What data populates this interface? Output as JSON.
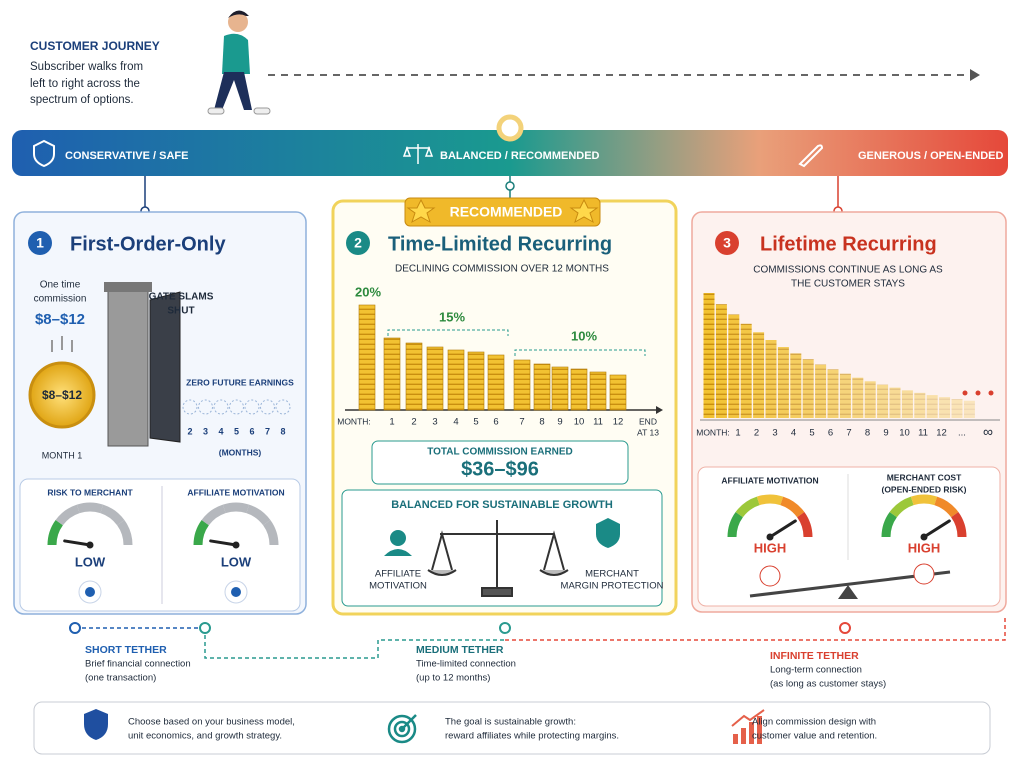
{
  "journey": {
    "title": "CUSTOMER JOURNEY",
    "lines": [
      "Subscriber walks from",
      "left to right across the",
      "spectrum of options."
    ]
  },
  "spectrum": [
    "CONSERVATIVE / SAFE",
    "BALANCED / RECOMMENDED",
    "GENEROUS / OPEN-ENDED"
  ],
  "badge": "RECOMMENDED",
  "panels": [
    {
      "number": "1",
      "title": "First-Order-Only",
      "commission_label": [
        "One time",
        "commission"
      ],
      "commission": "$8–$12",
      "coin": "$8–$12",
      "coin_caption": "MONTH 1",
      "gate": [
        "GATE SLAMS",
        "SHUT"
      ],
      "zero": "ZERO FUTURE EARNINGS",
      "months": [
        "2",
        "3",
        "4",
        "5",
        "6",
        "7",
        "8"
      ],
      "months_caption": "(MONTHS)",
      "gauges": [
        {
          "label": [
            "RISK TO MERCHANT"
          ],
          "level": "LOW"
        },
        {
          "label": [
            "AFFILIATE MOTIVATION"
          ],
          "level": "LOW"
        }
      ]
    },
    {
      "number": "2",
      "title": "Time-Limited Recurring",
      "subtitle": "DECLINING COMMISSION OVER 12 MONTHS",
      "rates": [
        "20%",
        "15%",
        "10%"
      ],
      "axis_label": "MONTH:",
      "months": [
        "1",
        "2",
        "3",
        "4",
        "5",
        "6",
        "7",
        "8",
        "9",
        "10",
        "11",
        "12"
      ],
      "end": [
        "END",
        "AT 13"
      ],
      "total_label": "TOTAL COMMISSION EARNED",
      "total": "$36–$96",
      "balance_title": "BALANCED FOR SUSTAINABLE GROWTH",
      "left": [
        "AFFILIATE",
        "MOTIVATION"
      ],
      "right": [
        "MERCHANT",
        "MARGIN PROTECTION"
      ]
    },
    {
      "number": "3",
      "title": "Lifetime Recurring",
      "subtitle": [
        "COMMISSIONS CONTINUE AS LONG AS",
        "THE CUSTOMER STAYS"
      ],
      "axis_label": "MONTH:",
      "months": [
        "1",
        "2",
        "3",
        "4",
        "5",
        "6",
        "7",
        "8",
        "9",
        "10",
        "11",
        "12",
        "...",
        "∞"
      ],
      "gauges": [
        {
          "label": [
            "AFFILIATE MOTIVATION"
          ],
          "level": "HIGH"
        },
        {
          "label": [
            "MERCHANT COST",
            "(OPEN-ENDED RISK)"
          ],
          "level": "HIGH"
        }
      ]
    }
  ],
  "tethers": [
    {
      "title": "SHORT TETHER",
      "lines": [
        "Brief financial connection",
        "(one transaction)"
      ]
    },
    {
      "title": "MEDIUM TETHER",
      "lines": [
        "Time-limited connection",
        "(up to 12 months)"
      ]
    },
    {
      "title": "INFINITE TETHER",
      "lines": [
        "Long-term connection",
        "(as long as customer stays)"
      ]
    }
  ],
  "footer": [
    [
      "Choose based on your business model,",
      "unit economics, and growth strategy."
    ],
    [
      "The goal is sustainable growth:",
      "reward affiliates while protecting margins."
    ],
    [
      "Align commission design with",
      "customer value and retention."
    ]
  ]
}
